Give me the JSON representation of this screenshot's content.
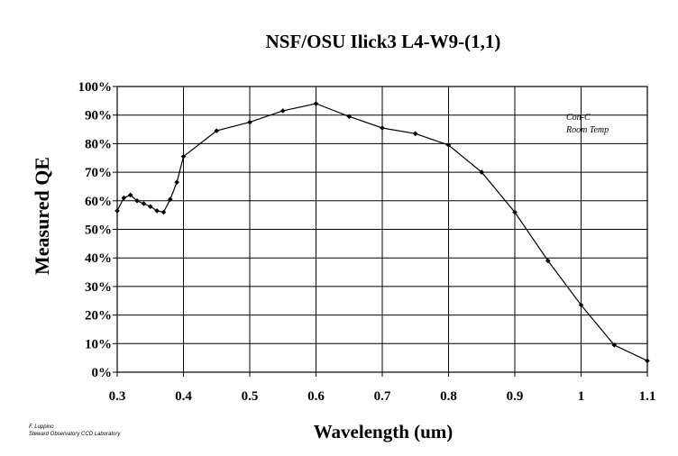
{
  "chart_data": {
    "type": "line",
    "title": "NSF/OSU Ilick3 L4-W9-(1,1)",
    "xlabel": "Wavelength (um)",
    "ylabel": "Measured QE",
    "xlim": [
      0.3,
      1.1
    ],
    "ylim": [
      0,
      100
    ],
    "x_ticks": [
      "0.3",
      "0.4",
      "0.5",
      "0.6",
      "0.7",
      "0.8",
      "0.9",
      "1",
      "1.1"
    ],
    "x_tick_values": [
      0.3,
      0.4,
      0.5,
      0.6,
      0.7,
      0.8,
      0.9,
      1.0,
      1.1
    ],
    "y_ticks": [
      "0%",
      "10%",
      "20%",
      "30%",
      "40%",
      "50%",
      "60%",
      "70%",
      "80%",
      "90%",
      "100%"
    ],
    "y_tick_values": [
      0,
      10,
      20,
      30,
      40,
      50,
      60,
      70,
      80,
      90,
      100
    ],
    "grid": true,
    "annotations": [
      "Con-C",
      "Room Temp"
    ],
    "credit": [
      "F. Luppino",
      "Steward Observatory CCD Laboratory"
    ],
    "series": [
      {
        "x": [
          0.3,
          0.31,
          0.32,
          0.33,
          0.34,
          0.35,
          0.36,
          0.37,
          0.38,
          0.39,
          0.4,
          0.45,
          0.5,
          0.55,
          0.6,
          0.65,
          0.7,
          0.75,
          0.8,
          0.85,
          0.9,
          0.95,
          1.0,
          1.05,
          1.1
        ],
        "y": [
          56.5,
          61,
          62,
          60,
          59,
          58,
          56.5,
          56,
          60.5,
          66.5,
          75.5,
          84.5,
          87.5,
          91.5,
          94,
          89.5,
          85.5,
          83.5,
          79.5,
          70,
          56,
          39,
          23.5,
          9.5,
          4
        ]
      }
    ]
  }
}
